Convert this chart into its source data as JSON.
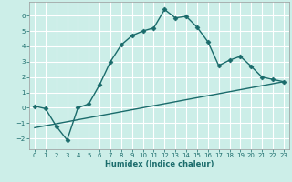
{
  "title": "",
  "xlabel": "Humidex (Indice chaleur)",
  "background_color": "#cceee8",
  "line_color": "#1a6b6b",
  "grid_color": "#ffffff",
  "xlim": [
    -0.5,
    23.5
  ],
  "ylim": [
    -2.7,
    6.9
  ],
  "x_ticks": [
    0,
    1,
    2,
    3,
    4,
    5,
    6,
    7,
    8,
    9,
    10,
    11,
    12,
    13,
    14,
    15,
    16,
    17,
    18,
    19,
    20,
    21,
    22,
    23
  ],
  "y_ticks": [
    -2,
    -1,
    0,
    1,
    2,
    3,
    4,
    5,
    6
  ],
  "curve1_x": [
    0,
    1,
    2,
    3,
    4,
    5,
    6,
    7,
    8,
    9,
    10,
    11,
    12,
    13,
    14,
    15,
    16,
    17,
    18,
    19,
    20,
    21,
    22,
    23
  ],
  "curve1_y": [
    0.1,
    -0.05,
    -1.2,
    -2.1,
    0.0,
    0.25,
    1.5,
    3.0,
    4.1,
    4.7,
    5.0,
    5.2,
    6.4,
    5.85,
    5.95,
    5.25,
    4.3,
    2.75,
    3.1,
    3.35,
    2.7,
    2.0,
    1.85,
    1.7
  ],
  "curve2_x": [
    0,
    23
  ],
  "curve2_y": [
    -1.3,
    1.7
  ],
  "markersize": 2.5,
  "linewidth": 1.0
}
